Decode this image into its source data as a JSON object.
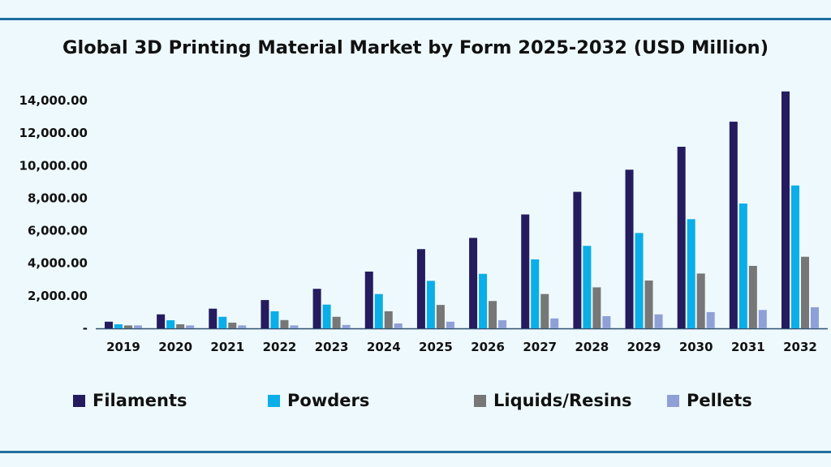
{
  "chart_data": {
    "type": "bar",
    "title": "Global 3D Printing Material Market by Form 2025-2032 (USD Million)",
    "xlabel": "",
    "ylabel": "",
    "ylim": [
      0,
      14000
    ],
    "yticks": [
      0,
      2000,
      4000,
      6000,
      8000,
      10000,
      12000,
      14000
    ],
    "ytick_labels": [
      "-",
      "2,000.00",
      "4,000.00",
      "6,000.00",
      "8,000.00",
      "10,000.00",
      "12,000.00",
      "14,000.00"
    ],
    "grid": false,
    "legend_placement": "bottom",
    "categories": [
      "2019",
      "2020",
      "2021",
      "2022",
      "2023",
      "2024",
      "2025",
      "2026",
      "2027",
      "2028",
      "2029",
      "2030",
      "2031",
      "2032"
    ],
    "series": [
      {
        "name": "Filaments",
        "color": "#241c5e",
        "values": [
          410,
          860,
          1210,
          1740,
          2430,
          3490,
          4870,
          5560,
          7000,
          8390,
          9750,
          11160,
          12700,
          14560
        ]
      },
      {
        "name": "Powders",
        "color": "#0aaee8",
        "values": [
          250,
          500,
          710,
          1050,
          1460,
          2110,
          2920,
          3350,
          4240,
          5070,
          5860,
          6710,
          7670,
          8780
        ]
      },
      {
        "name": "Liquids/Resins",
        "color": "#777777",
        "values": [
          180,
          250,
          350,
          510,
          710,
          1050,
          1440,
          1680,
          2110,
          2520,
          2940,
          3370,
          3840,
          4400
        ]
      },
      {
        "name": "Pellets",
        "color": "#8fa0d6",
        "values": [
          180,
          180,
          180,
          180,
          210,
          300,
          410,
          500,
          610,
          750,
          860,
          1000,
          1130,
          1300
        ]
      }
    ]
  },
  "colors": {
    "background": "#eef9fd",
    "rule": "#1d6f9f",
    "axis": "#2f4f6f"
  }
}
